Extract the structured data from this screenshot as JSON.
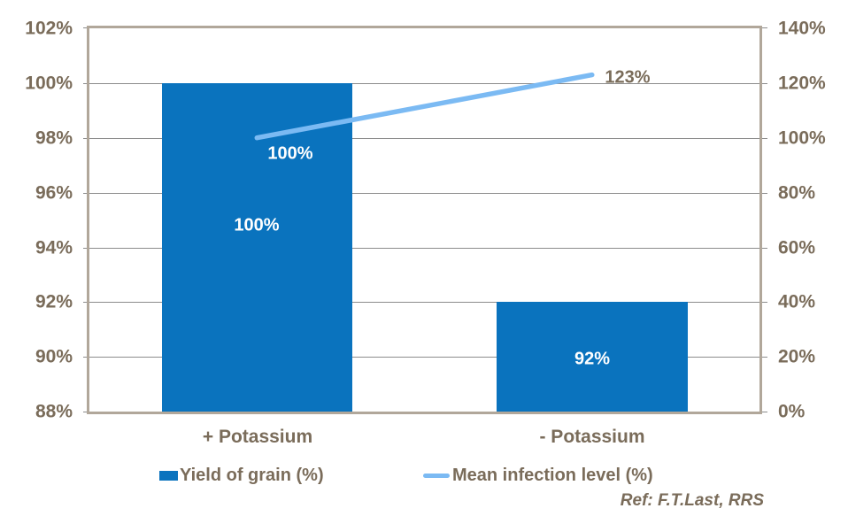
{
  "chart_data": {
    "type": "bar",
    "title": "",
    "categories": [
      "+ Potassium",
      "- Potassium"
    ],
    "series": [
      {
        "name": "Yield of grain (%)",
        "type": "bar",
        "axis": "left",
        "values": [
          100,
          92
        ],
        "labels": [
          "100%",
          "92%"
        ],
        "color": "#0A73BE"
      },
      {
        "name": "Mean infection level (%)",
        "type": "line",
        "axis": "right",
        "values": [
          100,
          123
        ],
        "labels": [
          "100%",
          "123%"
        ],
        "color": "#7BBAF3"
      }
    ],
    "left_axis": {
      "min": 88,
      "max": 102,
      "step": 2,
      "ticks": [
        "102%",
        "100%",
        "98%",
        "96%",
        "94%",
        "92%",
        "90%",
        "88%"
      ]
    },
    "right_axis": {
      "min": 0,
      "max": 140,
      "step": 20,
      "ticks": [
        "140%",
        "120%",
        "100%",
        "80%",
        "60%",
        "40%",
        "20%",
        "0%"
      ]
    },
    "grid": true,
    "legend_position": "bottom",
    "annotation": "Ref: F.T.Last, RRS",
    "colors": {
      "bar": "#0A73BE",
      "line": "#7BBAF3",
      "axis_text": "#7A6C5A",
      "gridline": "#8C8C8C",
      "frame": "#B1A79A",
      "bar_label": "#FFFFFF"
    }
  }
}
